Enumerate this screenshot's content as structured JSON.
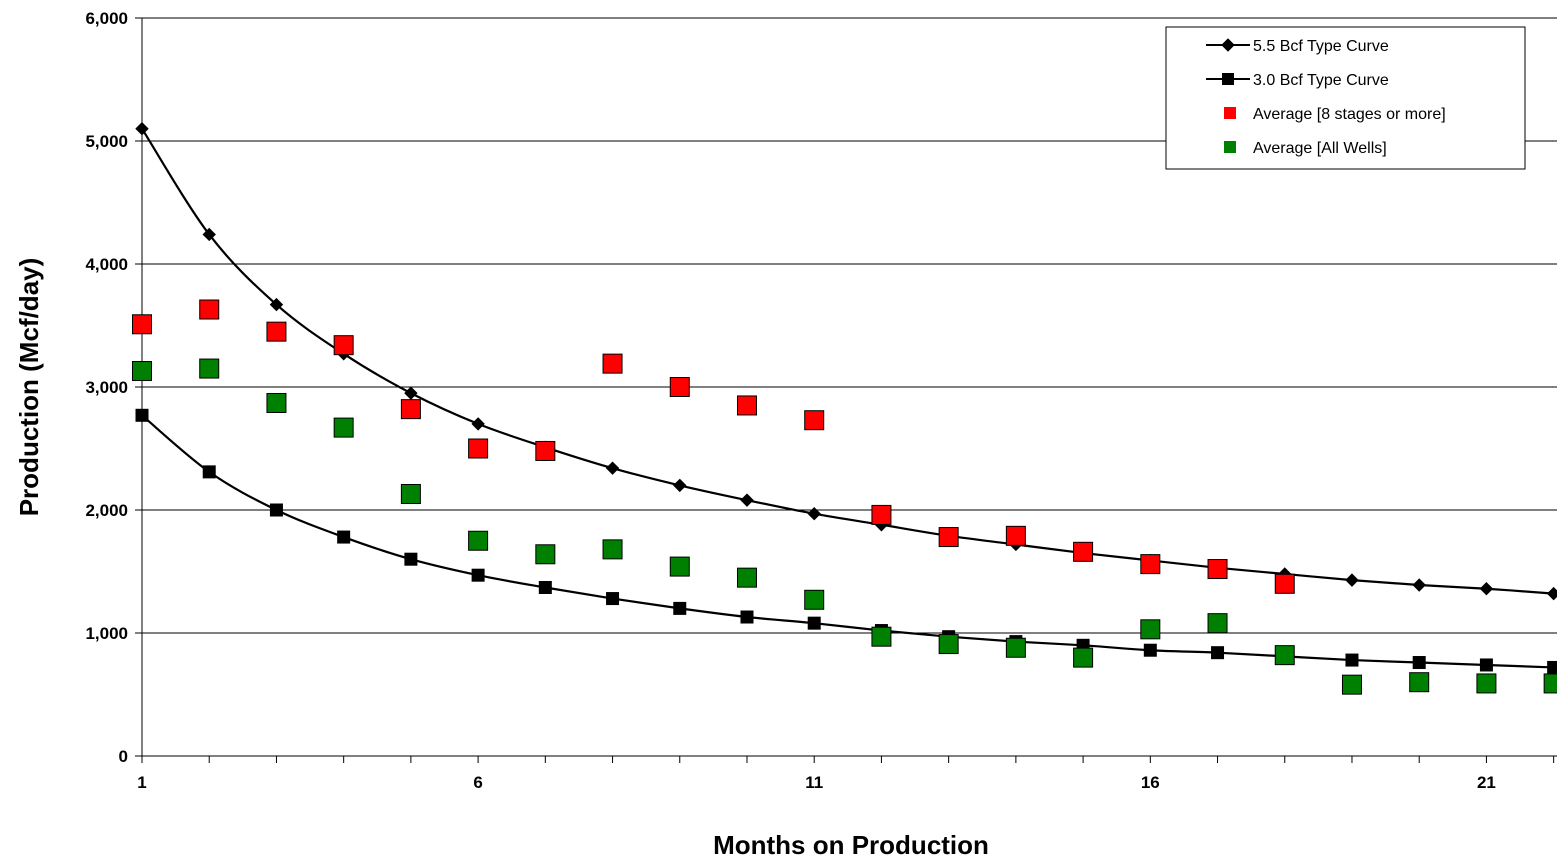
{
  "chart_data": {
    "type": "line",
    "title": "",
    "xlabel": "Months on Production",
    "ylabel": "Production (Mcf/day)",
    "xlim": [
      1,
      22
    ],
    "ylim": [
      0,
      6000
    ],
    "x_ticks": [
      1,
      6,
      11,
      16,
      21
    ],
    "x_tick_labels": [
      "1",
      "6",
      "11",
      "16",
      "21"
    ],
    "y_ticks": [
      0,
      1000,
      2000,
      3000,
      4000,
      5000,
      6000
    ],
    "y_tick_labels": [
      "0",
      "1,000",
      "2,000",
      "3,000",
      "4,000",
      "5,000",
      "6,000"
    ],
    "grid": "horizontal",
    "legend_position": "top-right",
    "series": [
      {
        "name": "5.5 Bcf Type Curve",
        "style": "line",
        "marker": "diamond",
        "color": "#000000",
        "x": [
          1,
          2,
          3,
          4,
          5,
          6,
          7,
          8,
          9,
          10,
          11,
          12,
          13,
          14,
          15,
          16,
          17,
          18,
          19,
          20,
          21,
          22
        ],
        "y": [
          5100,
          4240,
          3670,
          3270,
          2950,
          2700,
          2510,
          2340,
          2200,
          2080,
          1970,
          1880,
          1790,
          1720,
          1650,
          1590,
          1530,
          1480,
          1430,
          1390,
          1360,
          1320
        ]
      },
      {
        "name": "3.0 Bcf Type Curve",
        "style": "line",
        "marker": "square",
        "color": "#000000",
        "x": [
          1,
          2,
          3,
          4,
          5,
          6,
          7,
          8,
          9,
          10,
          11,
          12,
          13,
          14,
          15,
          16,
          17,
          18,
          19,
          20,
          21,
          22
        ],
        "y": [
          2770,
          2310,
          2000,
          1780,
          1600,
          1470,
          1370,
          1280,
          1200,
          1130,
          1080,
          1020,
          970,
          930,
          900,
          860,
          840,
          810,
          780,
          760,
          740,
          720
        ]
      },
      {
        "name": "Average [8 stages or more]",
        "style": "scatter",
        "marker": "square",
        "color": "#ff0000",
        "x": [
          1,
          2,
          3,
          4,
          5,
          6,
          7,
          8,
          9,
          10,
          11,
          12,
          13,
          14,
          15,
          16,
          17,
          18
        ],
        "y": [
          3510,
          3630,
          3450,
          3340,
          2820,
          2500,
          2480,
          3190,
          3000,
          2850,
          2730,
          1960,
          1780,
          1790,
          1660,
          1560,
          1520,
          1400
        ]
      },
      {
        "name": "Average [All Wells]",
        "style": "scatter",
        "marker": "square",
        "color": "#008000",
        "x": [
          1,
          2,
          3,
          4,
          5,
          6,
          7,
          8,
          9,
          10,
          11,
          12,
          13,
          14,
          15,
          16,
          17,
          18,
          19,
          20,
          21,
          22
        ],
        "y": [
          3130,
          3150,
          2870,
          2670,
          2130,
          1750,
          1640,
          1680,
          1540,
          1450,
          1270,
          970,
          910,
          880,
          800,
          1030,
          1080,
          820,
          580,
          600,
          590,
          590
        ]
      }
    ]
  }
}
